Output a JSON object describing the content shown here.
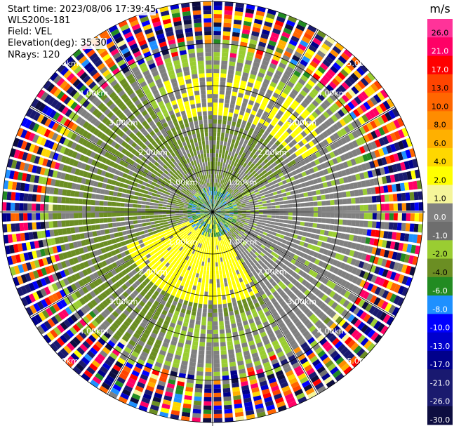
{
  "chart_data": {
    "type": "ppi",
    "header": {
      "start_time": "Start time: 2023/08/06 17:39:45",
      "instrument": "WLS200s-181",
      "field": "Field: VEL",
      "elevation": "Elevation(deg): 35.30",
      "nrays": "NRays: 120"
    },
    "colorbar": {
      "unit": "m/s",
      "ticks": [
        "26.0",
        "21.0",
        "17.0",
        "13.0",
        "10.0",
        "8.0",
        "6.0",
        "4.0",
        "2.0",
        "1.0",
        "0.0",
        "-1.0",
        "-2.0",
        "-4.0",
        "-6.0",
        "-8.0",
        "-10.0",
        "-13.0",
        "-17.0",
        "-21.0",
        "-26.0",
        "-30.0"
      ],
      "colors": [
        "#ff3399",
        "#ff0066",
        "#ff0000",
        "#ff4400",
        "#ff6600",
        "#ff8c00",
        "#ffb000",
        "#ffd700",
        "#ffff00",
        "#f5f59a",
        "#808080",
        "#6e6e6e",
        "#9acd32",
        "#6b8e23",
        "#228b22",
        "#1e90ff",
        "#0000ff",
        "#0000cd",
        "#00008b",
        "#191970",
        "#1a1a6e",
        "#0d0d40"
      ]
    },
    "range_rings": [
      {
        "range_km": 1,
        "label": "1.00km"
      },
      {
        "range_km": 2,
        "label": "2.00km"
      },
      {
        "range_km": 3,
        "label": "3.00km"
      },
      {
        "range_km": 4,
        "label": "4.00km"
      },
      {
        "range_km": 5,
        "label": "5.00km"
      }
    ],
    "n_rays": 120,
    "n_gates": 50,
    "max_range_km": 5.0,
    "velocity_regions": {
      "near_green": {
        "max_range_km": 0.6,
        "value": -5.0
      },
      "yellow_lobe": {
        "azimuth_from_deg": 150,
        "azimuth_to_deg": 250,
        "range_from_km": 0.1,
        "range_to_km": 2.2,
        "value": 2.5
      },
      "yellow_north": {
        "azimuth_from_deg": 340,
        "azimuth_to_deg": 60,
        "range_from_km": 2.3,
        "range_to_km": 3.3,
        "value": 2.0
      },
      "green_inner": {
        "range_from_km": 0.6,
        "range_to_km": 2.5,
        "value": -2.0
      },
      "green_west": {
        "azimuth_from_deg": 200,
        "azimuth_to_deg": 330,
        "range_from_km": 2.2,
        "range_to_km": 3.8,
        "value": -2.5
      },
      "gray_east": {
        "azimuth_from_deg": 60,
        "azimuth_to_deg": 150,
        "range_from_km": 0.8,
        "range_to_km": 4.0,
        "value": 0.0
      },
      "noise_beyond_km": 3.7
    }
  }
}
